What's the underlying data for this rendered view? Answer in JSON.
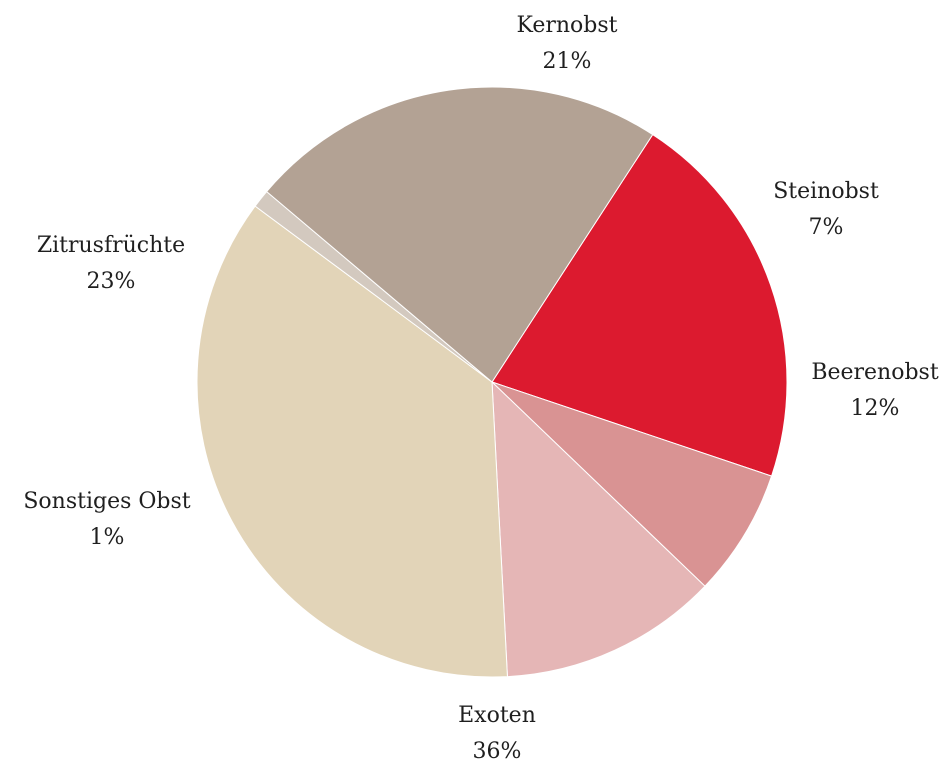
{
  "chart_data": {
    "type": "pie",
    "title": "",
    "start_angle_deg": -57,
    "direction": "clockwise",
    "slices": [
      {
        "label": "Kernobst",
        "pct_text": "21%",
        "value": 21,
        "color": "#DC1A2F"
      },
      {
        "label": "Steinobst",
        "pct_text": "7%",
        "value": 7,
        "color": "#D99393"
      },
      {
        "label": "Beerenobst",
        "pct_text": "12%",
        "value": 12,
        "color": "#E5B6B6"
      },
      {
        "label": "Exoten",
        "pct_text": "36%",
        "value": 36,
        "color": "#E2D4B8"
      },
      {
        "label": "Sonstiges Obst",
        "pct_text": "1%",
        "value": 1,
        "color": "#D3C9BF"
      },
      {
        "label": "Zitrusfrüchte",
        "pct_text": "23%",
        "value": 23,
        "color": "#B3A294"
      }
    ]
  }
}
